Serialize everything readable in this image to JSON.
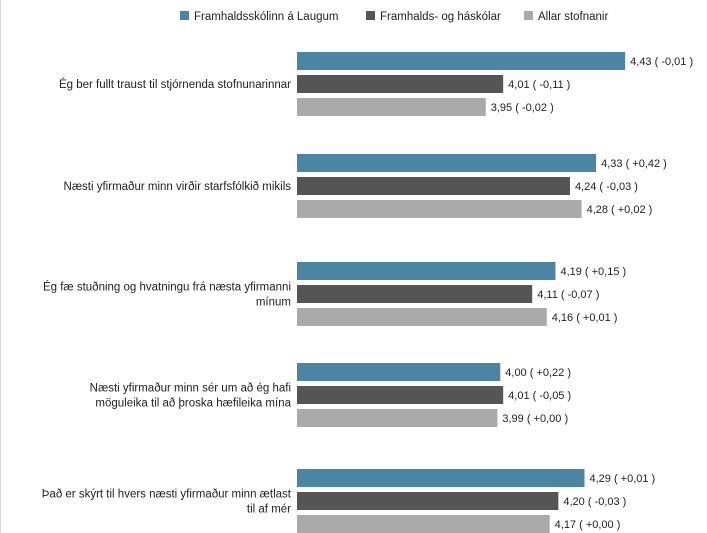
{
  "chart_data": {
    "type": "bar",
    "orientation": "horizontal",
    "legend_position": "top",
    "grid": false,
    "xlim": [
      3.3,
      4.45
    ],
    "series": [
      {
        "name": "Framhaldsskólinn á Laugum",
        "color": "#4a86a4"
      },
      {
        "name": "Framhalds- og háskólar",
        "color": "#555555"
      },
      {
        "name": "Allar stofnanir",
        "color": "#aaaaaa"
      }
    ],
    "categories": [
      {
        "lines": [
          "Ég ber fullt traust til stjórnenda stofnunarinnar"
        ],
        "values": [
          4.43,
          4.01,
          3.95
        ],
        "labels": [
          "4,43 ( -0,01 )",
          "4,01 ( -0,11 )",
          "3,95 ( -0,02 )"
        ]
      },
      {
        "lines": [
          "Næsti yfirmaður minn virðir starfsfólkið mikils"
        ],
        "values": [
          4.33,
          4.24,
          4.28
        ],
        "labels": [
          "4,33 ( +0,42 )",
          "4,24 ( -0,03 )",
          "4,28 ( +0,02 )"
        ]
      },
      {
        "lines": [
          "Ég fæ stuðning og hvatningu frá næsta yfirmanni",
          "mínum"
        ],
        "values": [
          4.19,
          4.11,
          4.16
        ],
        "labels": [
          "4,19 ( +0,15 )",
          "4,11 ( -0,07 )",
          "4,16 ( +0,01 )"
        ]
      },
      {
        "lines": [
          "Næsti yfirmaður minn sér um að ég hafi",
          "möguleika til að þroska hæfileika mína"
        ],
        "values": [
          4.0,
          4.01,
          3.99
        ],
        "labels": [
          "4,00 ( +0,22 )",
          "4,01 ( -0,05 )",
          "3,99 ( +0,00 )"
        ]
      },
      {
        "lines": [
          "Það er skýrt til hvers næsti yfirmaður minn ætlast",
          "til af mér"
        ],
        "values": [
          4.29,
          4.2,
          4.17
        ],
        "labels": [
          "4,29 ( +0,01 )",
          "4,20 ( -0,03 )",
          "4,17 ( +0,00 )"
        ]
      }
    ]
  }
}
